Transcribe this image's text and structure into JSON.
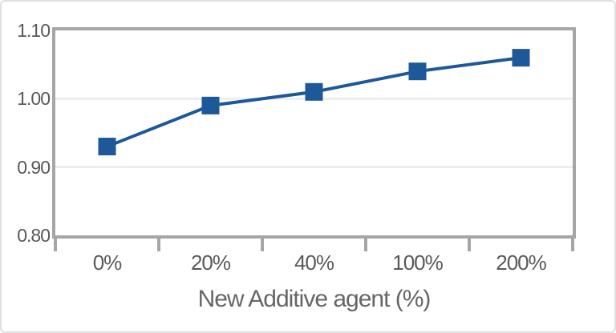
{
  "chart_data": {
    "type": "line",
    "title": "",
    "xlabel": "New Additive agent (%)",
    "ylabel": "",
    "x_axis_type": "category",
    "categories": [
      "0%",
      "20%",
      "40%",
      "100%",
      "200%"
    ],
    "series": [
      {
        "values": [
          0.93,
          0.99,
          1.01,
          1.04,
          1.06
        ],
        "marker": "square"
      }
    ],
    "ylim": [
      0.8,
      1.1
    ],
    "yticks": [
      "1.10",
      "1.00",
      "0.90",
      "0.80"
    ],
    "grid": "horizontal-gridlines-only",
    "legend_position": "none"
  },
  "colors": {
    "line": "#1d5899",
    "marker": "#1d5899",
    "axis": "#a6a6a6",
    "gridline": "#ebebeb",
    "tick_text": "#595959",
    "title_text": "#666666",
    "card_border": "#e0e0e0",
    "background": "#ffffff"
  }
}
